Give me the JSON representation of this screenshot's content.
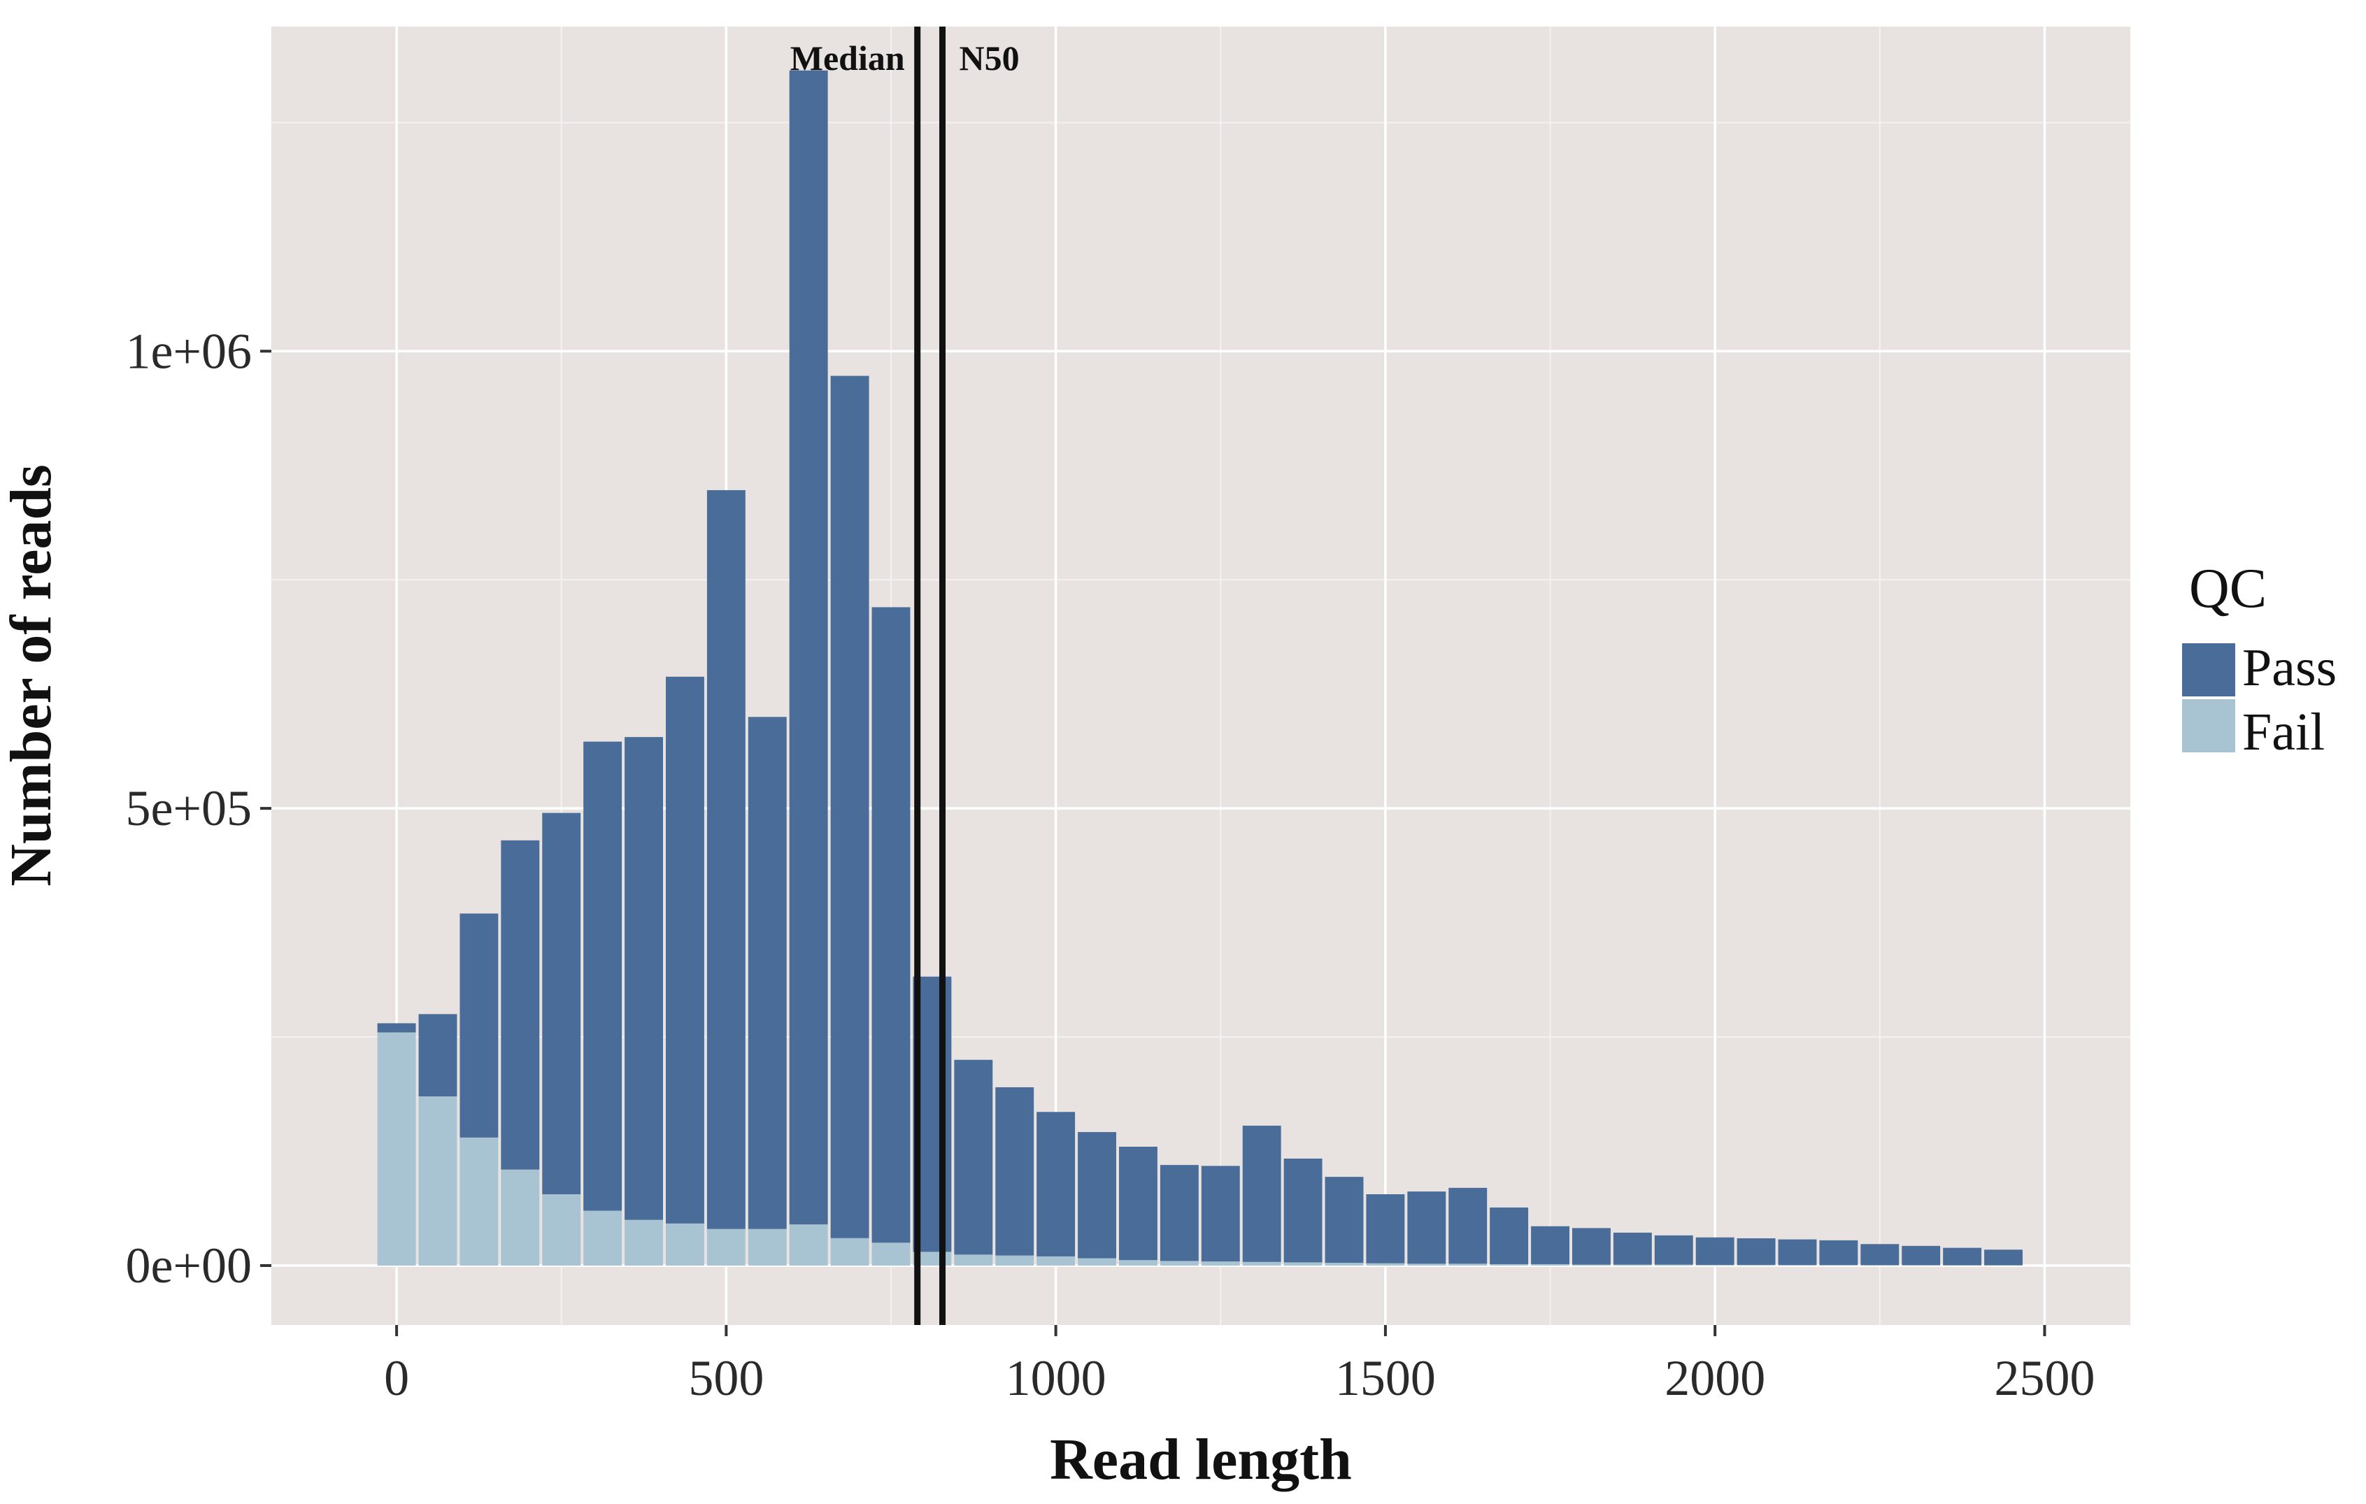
{
  "chart_data": {
    "type": "bar",
    "stacked": true,
    "xlabel": "Read length",
    "ylabel": "Number of reads",
    "xlim": [
      -190,
      2630
    ],
    "ylim": [
      -65000,
      1355000
    ],
    "x_ticks": [
      0,
      500,
      1000,
      1500,
      2000,
      2500
    ],
    "x_tick_labels": [
      "0",
      "500",
      "1000",
      "1500",
      "2000",
      "2500"
    ],
    "y_ticks": [
      0,
      500000,
      1000000
    ],
    "y_tick_labels": [
      "0e+00",
      "5e+05",
      "1e+06"
    ],
    "y_minor_ticks": [
      250000,
      750000,
      1250000
    ],
    "x_minor_ticks": [
      250,
      750,
      1250,
      1750,
      2250
    ],
    "grid": true,
    "legend": {
      "title": "QC",
      "position": "right",
      "entries": [
        "Pass",
        "Fail"
      ]
    },
    "bin_width": 62.5,
    "x": [
      0,
      62.5,
      125,
      187.5,
      250,
      312.5,
      375,
      437.5,
      500,
      562.5,
      625,
      687.5,
      750,
      812.5,
      875,
      937.5,
      1000,
      1062.5,
      1125,
      1187.5,
      1250,
      1312.5,
      1375,
      1437.5,
      1500,
      1562.5,
      1625,
      1687.5,
      1750,
      1812.5,
      1875,
      1937.5,
      2000,
      2062.5,
      2125,
      2187.5,
      2250,
      2312.5,
      2375,
      2437.5
    ],
    "series": [
      {
        "name": "Fail",
        "color": "#a8c4d3",
        "values": [
          255000,
          185000,
          140000,
          105000,
          78000,
          60000,
          50000,
          46000,
          40000,
          40000,
          45000,
          30000,
          25000,
          15000,
          12000,
          11000,
          10000,
          8000,
          6000,
          5000,
          4500,
          4000,
          3500,
          3000,
          2500,
          2000,
          2000,
          1500,
          1500,
          1000,
          1000,
          1000,
          800,
          800,
          600,
          600,
          500,
          500,
          400,
          400
        ]
      },
      {
        "name": "Pass",
        "color": "#4a6c98",
        "values": [
          10000,
          90000,
          245000,
          360000,
          417000,
          513000,
          528000,
          598000,
          808000,
          560000,
          1262000,
          943000,
          695000,
          301000,
          213000,
          184000,
          158000,
          138000,
          124000,
          105000,
          104500,
          149000,
          113500,
          94000,
          75500,
          79000,
          83000,
          62000,
          41500,
          40000,
          35000,
          32000,
          30000,
          29000,
          28000,
          27000,
          23000,
          21000,
          19000,
          17000
        ]
      }
    ],
    "vlines": [
      {
        "label": "Median",
        "x": 790
      },
      {
        "label": "N50",
        "x": 828
      }
    ]
  }
}
